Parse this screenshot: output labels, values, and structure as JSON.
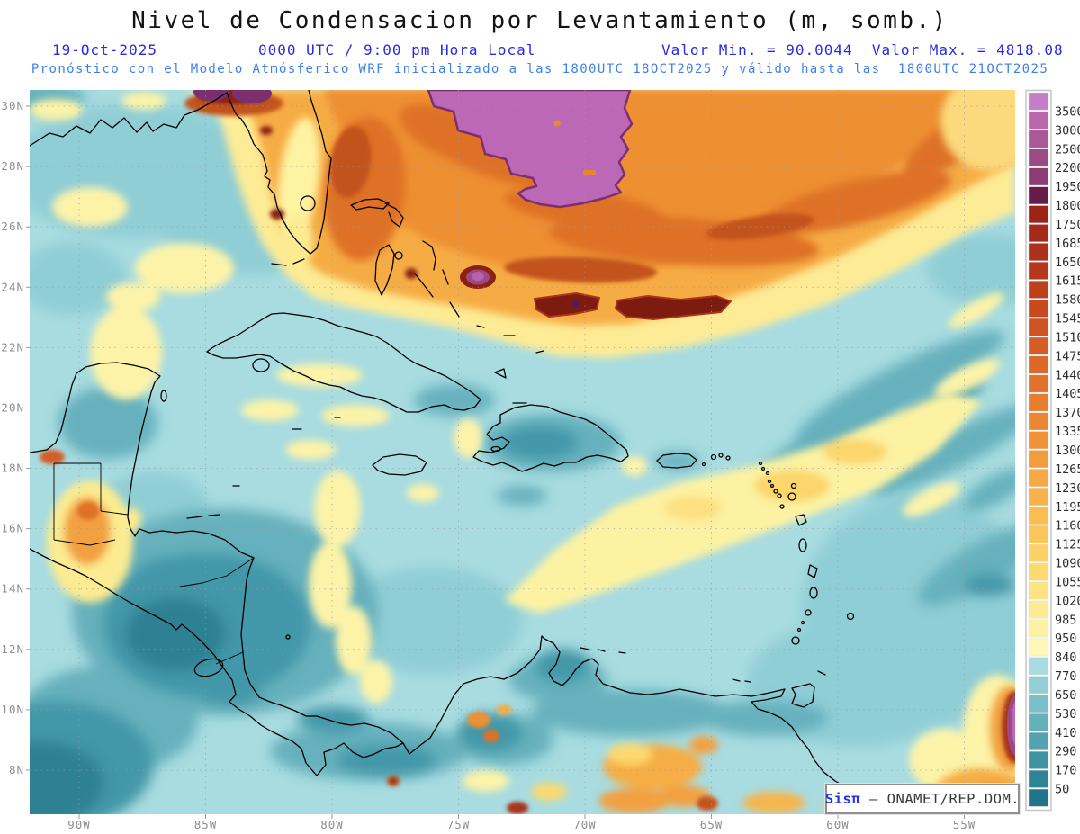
{
  "header": {
    "title": "Nivel de Condensacion por Levantamiento (m, somb.)",
    "date": "19-Oct-2025",
    "time": "0000 UTC / 9:00 pm Hora Local",
    "minmax": "Valor Min. = 90.0044  Valor Max. = 4818.08",
    "forecast": "Pronóstico con el Modelo Atmósferico WRF inicializado a las 1800UTC_18OCT2025 y válido hasta las  1800UTC_21OCT2025"
  },
  "attribution": {
    "brand": "Sisπ",
    "text": " – ONAMET/REP.DOM."
  },
  "colors": {
    "header_blue": "#2a2ae0",
    "forecast_blue": "#3f80e8",
    "axis_gray": "#8e8e8e",
    "attribution_blue": "#2233ee",
    "ocean_base": "#a8dce1"
  },
  "chart_data": {
    "type": "heatmap",
    "title": "Nivel de Condensacion por Levantamiento (m, somb.)",
    "units": "m",
    "value_min": 90.0044,
    "value_max": 4818.08,
    "model": "WRF",
    "valid_date": "19-Oct-2025 0000 UTC / 9:00 pm Hora Local",
    "init": "1800UTC_18OCT2025",
    "valid_until": "1800UTC_21OCT2025",
    "grid": "dotted",
    "legend_position": "right",
    "lon_ticks": [
      "90W",
      "85W",
      "80W",
      "75W",
      "70W",
      "65W",
      "60W",
      "55W"
    ],
    "lat_ticks": [
      "30N",
      "28N",
      "26N",
      "24N",
      "22N",
      "20N",
      "18N",
      "16N",
      "14N",
      "12N",
      "10N",
      "8N"
    ],
    "lon_range_deg_w": [
      92,
      53
    ],
    "lat_range_deg_n": [
      6.5,
      30.5
    ],
    "colorbar": {
      "levels": [
        50,
        170,
        290,
        410,
        530,
        650,
        770,
        840,
        950,
        985,
        1020,
        1055,
        1090,
        1125,
        1160,
        1195,
        1230,
        1265,
        1300,
        1335,
        1370,
        1405,
        1440,
        1475,
        1510,
        1545,
        1580,
        1615,
        1650,
        1685,
        1750,
        1800,
        1950,
        2200,
        2500,
        3000,
        3500
      ],
      "segment_colors_low_to_high": [
        "#21758a",
        "#2f8396",
        "#4092a3",
        "#53a2b0",
        "#66b0bc",
        "#7bbfc8",
        "#91ced5",
        "#a8dce1",
        "#fdf8b7",
        "#fdf2a3",
        "#fdeb91",
        "#fde381",
        "#fcda72",
        "#fcd166",
        "#fbc75b",
        "#f9bd52",
        "#f7b24a",
        "#f5a843",
        "#f29d3d",
        "#ef9238",
        "#eb8733",
        "#e67d2f",
        "#e1722b",
        "#db6728",
        "#d55d25",
        "#ce5322",
        "#c64920",
        "#bd401d",
        "#b4371b",
        "#ad301a",
        "#a52a18",
        "#9c2315",
        "#671b4b",
        "#8c3c72",
        "#9c4a85",
        "#ac5898",
        "#ba66ac",
        "#c77cc7"
      ]
    },
    "features": [
      {
        "area": "Atlantic north of ~23N (Bahamas to open ocean)",
        "approx_value_m": "1200-1800 (orange, dark orange arcs ~1500-1750)"
      },
      {
        "area": "Top-center Atlantic patch ~26-30N 70-75W",
        "approx_value_m": ">3500 (purple); domain max 4818.08"
      },
      {
        "area": "Elongated spots near 23.5N 69-72W",
        "approx_value_m": "~1800-1950 (dark maroon)"
      },
      {
        "area": "Florida peninsula spine",
        "approx_value_m": "~950-1100 (pale yellow) with local >1750 spots"
      },
      {
        "area": "Gulf of Mexico / most of Caribbean Sea",
        "approx_value_m": "~650-840 (light cyan)"
      },
      {
        "area": "W Caribbean off Honduras-Nicaragua & E Pacific corner",
        "approx_value_m": "~90-530 (dark teal); domain min 90.0044"
      },
      {
        "area": "Hispaniola interior",
        "approx_value_m": "~290-650 (teal)"
      },
      {
        "area": "Band SE of Puerto Rico toward 55W",
        "approx_value_m": "~840-1100 (pale yellow)"
      },
      {
        "area": "Guatemala highlands patch",
        "approx_value_m": "~1000-1400 (yellow-orange)"
      },
      {
        "area": "Colombia / Venezuela coastal spots",
        "approx_value_m": "~1300-1800 (orange-red)"
      },
      {
        "area": "Right-edge strip near 10N 53W",
        "approx_value_m": ">1950 (purple)"
      }
    ]
  }
}
